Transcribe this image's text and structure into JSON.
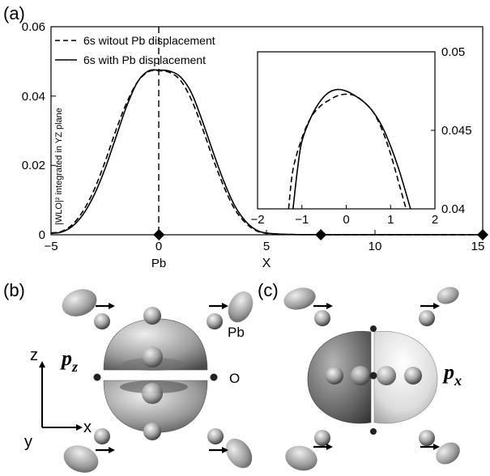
{
  "figure": {
    "panel_a_label": "(a)",
    "panel_b_label": "(b)",
    "panel_c_label": "(c)"
  },
  "chart_data": [
    {
      "type": "line",
      "xlabel": "X",
      "ylabel": "|WLO|² integrated in YZ plane",
      "xlim": [
        -5,
        15
      ],
      "ylim": [
        0,
        0.06
      ],
      "xticks": [
        "−5",
        "0",
        "5",
        "10",
        "15"
      ],
      "xtick_values": [
        -5,
        0,
        5,
        10,
        15
      ],
      "yticks": [
        "0",
        "0.02",
        "0.04",
        "0.06"
      ],
      "ytick_values": [
        0,
        0.02,
        0.04,
        0.06
      ],
      "annotation": "Pb",
      "dashed_marker_x": 0,
      "diamond_markers_x": [
        0,
        7.5,
        15
      ],
      "legend_position": "top-left",
      "grid": false,
      "series": [
        {
          "name": "6s witout Pb displacement",
          "style": "dashed",
          "x": [
            -5,
            -4.5,
            -4,
            -3.5,
            -3,
            -2.5,
            -2,
            -1.5,
            -1,
            -0.5,
            0,
            0.5,
            1,
            1.5,
            2,
            2.5,
            3,
            3.5,
            4,
            4.5,
            5,
            6,
            7,
            8,
            10,
            15
          ],
          "y": [
            0.0005,
            0.001,
            0.003,
            0.007,
            0.013,
            0.021,
            0.03,
            0.038,
            0.044,
            0.047,
            0.0473,
            0.0468,
            0.0445,
            0.039,
            0.031,
            0.022,
            0.014,
            0.0075,
            0.0035,
            0.0012,
            0.0004,
            0.0001,
            5e-05,
            2e-05,
            1e-05,
            0
          ]
        },
        {
          "name": "6s with Pb displacement",
          "style": "solid",
          "x": [
            -5,
            -4.5,
            -4,
            -3.5,
            -3,
            -2.5,
            -2,
            -1.5,
            -1,
            -0.5,
            0,
            0.5,
            1,
            1.5,
            2,
            2.5,
            3,
            3.5,
            4,
            4.5,
            5,
            6,
            7,
            8,
            10,
            15
          ],
          "y": [
            0.0004,
            0.0008,
            0.0025,
            0.006,
            0.0115,
            0.019,
            0.028,
            0.037,
            0.044,
            0.0472,
            0.0475,
            0.0472,
            0.0455,
            0.041,
            0.033,
            0.024,
            0.0155,
            0.0085,
            0.004,
            0.0014,
            0.0005,
            0.0001,
            5e-05,
            2e-05,
            1e-05,
            0
          ]
        }
      ]
    },
    {
      "type": "line",
      "xlim": [
        -2,
        2
      ],
      "ylim": [
        0.04,
        0.05
      ],
      "xticks": [
        "−2",
        "−1",
        "0",
        "1",
        "2"
      ],
      "xtick_values": [
        -2,
        -1,
        0,
        1,
        2
      ],
      "yticks": [
        "0.04",
        "0.045",
        "0.05"
      ],
      "ytick_values": [
        0.04,
        0.045,
        0.05
      ],
      "y_axis_side": "right",
      "series": [
        {
          "name": "6s witout Pb displacement",
          "style": "dashed",
          "x": [
            -1.3,
            -1.2,
            -1.0,
            -0.8,
            -0.6,
            -0.4,
            -0.2,
            0.0,
            0.2,
            0.4,
            0.6,
            0.8,
            1.0,
            1.2,
            1.35
          ],
          "y": [
            0.04,
            0.0425,
            0.0445,
            0.0458,
            0.0465,
            0.0469,
            0.0472,
            0.0473,
            0.0472,
            0.0468,
            0.0462,
            0.0451,
            0.0435,
            0.0415,
            0.04
          ]
        },
        {
          "name": "6s with Pb displacement",
          "style": "solid",
          "x": [
            -1.2,
            -1.1,
            -1.0,
            -0.8,
            -0.6,
            -0.4,
            -0.2,
            0.0,
            0.2,
            0.4,
            0.6,
            0.8,
            1.0,
            1.2,
            1.45
          ],
          "y": [
            0.04,
            0.0425,
            0.0443,
            0.0458,
            0.0468,
            0.0474,
            0.0476,
            0.0475,
            0.0472,
            0.0468,
            0.0462,
            0.0453,
            0.044,
            0.0424,
            0.04
          ]
        }
      ]
    }
  ],
  "orbital_panels": {
    "axes": {
      "z": "z",
      "y": "y",
      "x": "x"
    },
    "b": {
      "orbital": "p",
      "subscript": "z",
      "atom_label_pb": "Pb",
      "atom_label_o": "O"
    },
    "c": {
      "orbital": "p",
      "subscript": "x"
    }
  },
  "colors": {
    "line": "#000000",
    "lobe_light": "#f2f2f2",
    "lobe_dark": "#5c5c5c",
    "sphere_dark": "#3a3a3a"
  }
}
